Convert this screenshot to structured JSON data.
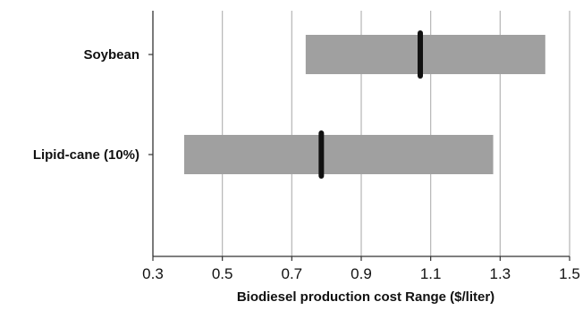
{
  "chart_data": {
    "type": "bar",
    "orientation": "horizontal",
    "style": "floating-range-with-marker",
    "categories": [
      "Soybean",
      "Lipid-cane (10%)"
    ],
    "series": [
      {
        "values": [
          {
            "category": "Soybean",
            "low": 0.74,
            "high": 1.43,
            "marker": 1.07
          },
          {
            "category": "Lipid-cane (10%)",
            "low": 0.39,
            "high": 1.28,
            "marker": 0.785
          }
        ]
      }
    ],
    "title": "",
    "xlabel": "Biodiesel production cost Range ($/liter)",
    "ylabel": "",
    "xlim": [
      0.3,
      1.5
    ],
    "xticks": [
      0.3,
      0.5,
      0.7,
      0.9,
      1.1,
      1.3,
      1.5
    ],
    "xtick_labels": [
      "0.3",
      "0.5",
      "0.7",
      "0.9",
      "1.1",
      "1.3",
      "1.5"
    ],
    "grid": "vertical",
    "legend": "none",
    "colors": {
      "range_bar": "#a0a0a0",
      "marker": "#111111",
      "grid": "#b5b5b5",
      "axis": "#333333"
    }
  }
}
